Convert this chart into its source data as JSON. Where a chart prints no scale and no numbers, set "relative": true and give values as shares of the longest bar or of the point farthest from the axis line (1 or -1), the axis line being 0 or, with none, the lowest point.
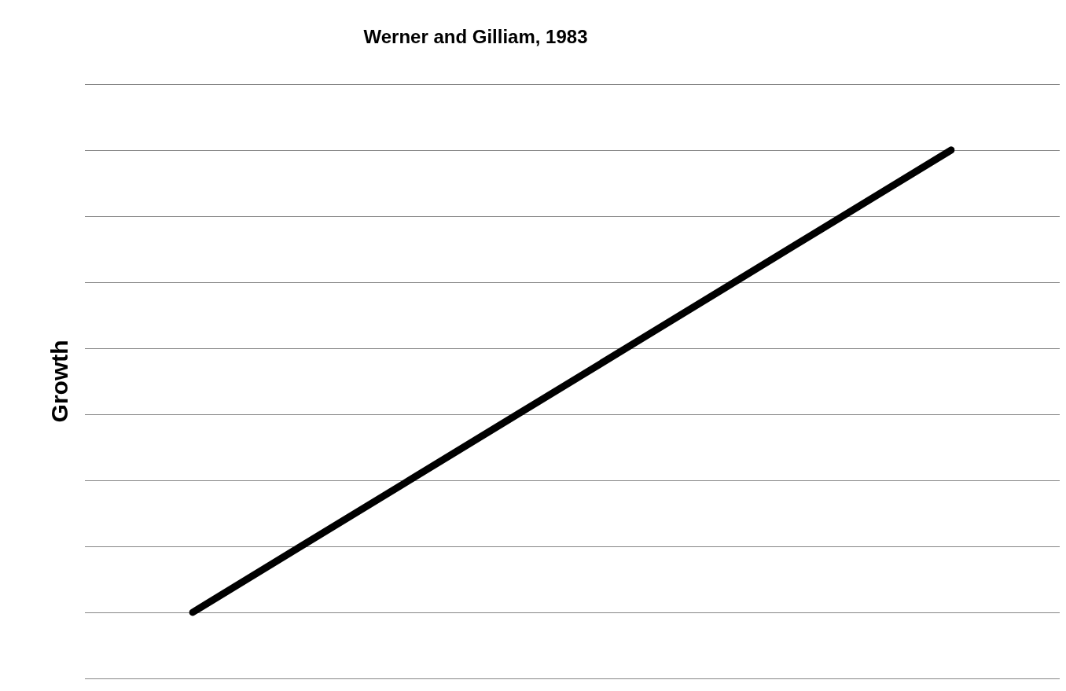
{
  "chart_data": {
    "type": "line",
    "title": "Werner and Gilliam, 1983",
    "ylabel": "Growth",
    "relative": true,
    "categories": [
      null,
      null,
      null,
      null,
      null,
      null,
      null,
      null
    ],
    "series": [
      {
        "color": "#000000",
        "values": [
          0.125,
          0.25,
          0.375,
          0.5,
          0.625,
          0.75,
          0.875,
          1
        ]
      }
    ],
    "grid": "y",
    "legend": false,
    "marker": "none",
    "line_style": "solid"
  }
}
